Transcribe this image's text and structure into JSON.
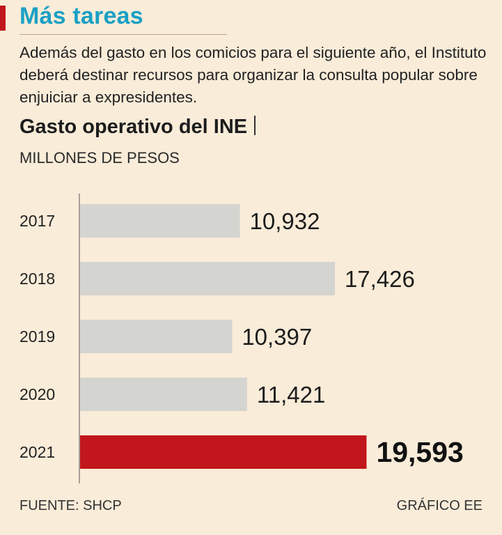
{
  "headline": "Más tareas",
  "intro": "Además del gasto en los comicios para el siguiente año, el Instituto deberá destinar recursos para organizar la consulta popular sobre enjuiciar a expresidentes.",
  "colors": {
    "accent": "#c1161b",
    "headline": "#1aa0c4",
    "bar": "#d4d4d0",
    "highlight_bar": "#c1161b",
    "background": "#f9ecd9"
  },
  "footer": {
    "source": "FUENTE: SHCP",
    "credit": "GRÁFICO EE"
  },
  "chart_data": {
    "type": "bar",
    "orientation": "horizontal",
    "title": "Gasto operativo del INE",
    "subtitle": "MILLONES DE PESOS",
    "categories": [
      "2017",
      "2018",
      "2019",
      "2020",
      "2021"
    ],
    "values": [
      10932,
      17426,
      10397,
      11421,
      19593
    ],
    "value_labels": [
      "10,932",
      "17,426",
      "10,397",
      "11,421",
      "19,593"
    ],
    "highlight_index": 4,
    "xlim": [
      0,
      20000
    ],
    "grid": false,
    "legend": "none"
  }
}
